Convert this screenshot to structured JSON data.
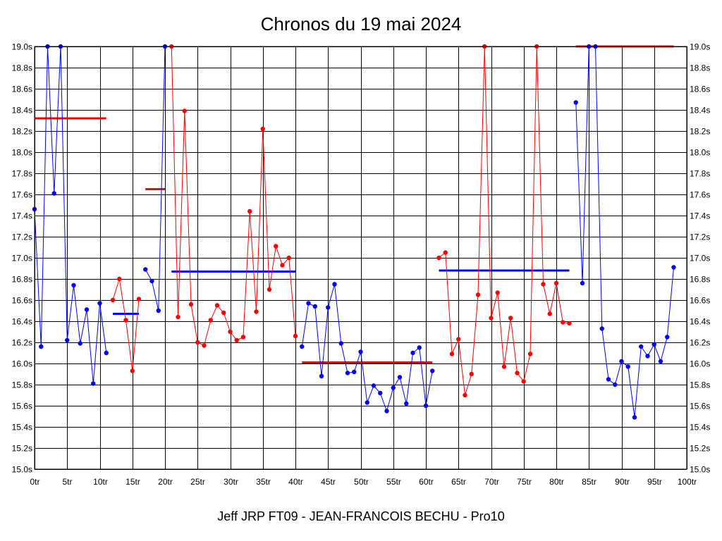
{
  "chart_data": {
    "type": "line",
    "title": "Chronos du 19 mai 2024",
    "footer": "Jeff JRP FT09 - JEAN-FRANCOIS BECHU - Pro10",
    "xlim": [
      0,
      100
    ],
    "ylim": [
      15.0,
      19.0
    ],
    "x_ticks": [
      {
        "value": 0,
        "label": "0tr"
      },
      {
        "value": 5,
        "label": "5tr"
      },
      {
        "value": 10,
        "label": "10tr"
      },
      {
        "value": 15,
        "label": "15tr"
      },
      {
        "value": 20,
        "label": "20tr"
      },
      {
        "value": 25,
        "label": "25tr"
      },
      {
        "value": 30,
        "label": "30tr"
      },
      {
        "value": 35,
        "label": "35tr"
      },
      {
        "value": 40,
        "label": "40tr"
      },
      {
        "value": 45,
        "label": "45tr"
      },
      {
        "value": 50,
        "label": "50tr"
      },
      {
        "value": 55,
        "label": "55tr"
      },
      {
        "value": 60,
        "label": "60tr"
      },
      {
        "value": 65,
        "label": "65tr"
      },
      {
        "value": 70,
        "label": "70tr"
      },
      {
        "value": 75,
        "label": "75tr"
      },
      {
        "value": 80,
        "label": "80tr"
      },
      {
        "value": 85,
        "label": "85tr"
      },
      {
        "value": 90,
        "label": "90tr"
      },
      {
        "value": 95,
        "label": "95tr"
      },
      {
        "value": 100,
        "label": "100tr"
      }
    ],
    "y_ticks": [
      {
        "value": 19.0,
        "label": "19.0s"
      },
      {
        "value": 18.8,
        "label": "18.8s"
      },
      {
        "value": 18.6,
        "label": "18.6s"
      },
      {
        "value": 18.4,
        "label": "18.4s"
      },
      {
        "value": 18.2,
        "label": "18.2s"
      },
      {
        "value": 18.0,
        "label": "18.0s"
      },
      {
        "value": 17.8,
        "label": "17.8s"
      },
      {
        "value": 17.6,
        "label": "17.6s"
      },
      {
        "value": 17.4,
        "label": "17.4s"
      },
      {
        "value": 17.2,
        "label": "17.2s"
      },
      {
        "value": 17.0,
        "label": "17.0s"
      },
      {
        "value": 16.8,
        "label": "16.8s"
      },
      {
        "value": 16.6,
        "label": "16.6s"
      },
      {
        "value": 16.4,
        "label": "16.4s"
      },
      {
        "value": 16.2,
        "label": "16.2s"
      },
      {
        "value": 16.0,
        "label": "16.0s"
      },
      {
        "value": 15.8,
        "label": "15.8s"
      },
      {
        "value": 15.6,
        "label": "15.6s"
      },
      {
        "value": 15.4,
        "label": "15.4s"
      },
      {
        "value": 15.2,
        "label": "15.2s"
      },
      {
        "value": 15.0,
        "label": "15.0s"
      }
    ],
    "grid": true,
    "colors": {
      "blue": "#0000ff",
      "red": "#ff0000"
    },
    "series": [
      {
        "color": "#0000ff",
        "points": [
          [
            0,
            17.46
          ],
          [
            1,
            16.16
          ],
          [
            2,
            19.0
          ],
          [
            3,
            17.61
          ],
          [
            4,
            19.0
          ],
          [
            5,
            16.22
          ],
          [
            6,
            16.74
          ],
          [
            7,
            16.19
          ],
          [
            8,
            16.51
          ],
          [
            9,
            15.81
          ],
          [
            10,
            16.57
          ],
          [
            11,
            16.1
          ]
        ]
      },
      {
        "color": "#ff0000",
        "points": [
          [
            12,
            16.6
          ],
          [
            13,
            16.8
          ],
          [
            14,
            16.41
          ],
          [
            15,
            15.93
          ],
          [
            16,
            16.61
          ]
        ]
      },
      {
        "color": "#0000ff",
        "points": [
          [
            17,
            16.89
          ],
          [
            18,
            16.78
          ],
          [
            19,
            16.5
          ],
          [
            20,
            19.0
          ]
        ]
      },
      {
        "color": "#ff0000",
        "points": [
          [
            21,
            19.0
          ],
          [
            22,
            16.44
          ],
          [
            23,
            18.39
          ],
          [
            24,
            16.56
          ],
          [
            25,
            16.2
          ],
          [
            26,
            16.17
          ],
          [
            27,
            16.41
          ],
          [
            28,
            16.55
          ],
          [
            29,
            16.48
          ],
          [
            30,
            16.3
          ],
          [
            31,
            16.22
          ],
          [
            32,
            16.25
          ],
          [
            33,
            17.44
          ],
          [
            34,
            16.49
          ],
          [
            35,
            18.22
          ],
          [
            36,
            16.7
          ],
          [
            37,
            17.11
          ],
          [
            38,
            16.93
          ],
          [
            39,
            17.0
          ],
          [
            40,
            16.26
          ]
        ]
      },
      {
        "color": "#0000ff",
        "points": [
          [
            41,
            16.16
          ],
          [
            42,
            16.57
          ],
          [
            43,
            16.54
          ],
          [
            44,
            15.88
          ],
          [
            45,
            16.53
          ],
          [
            46,
            16.75
          ],
          [
            47,
            16.19
          ],
          [
            48,
            15.91
          ],
          [
            49,
            15.92
          ],
          [
            50,
            16.11
          ],
          [
            51,
            15.63
          ],
          [
            52,
            15.79
          ],
          [
            53,
            15.72
          ],
          [
            54,
            15.55
          ],
          [
            55,
            15.77
          ],
          [
            56,
            15.87
          ],
          [
            57,
            15.62
          ],
          [
            58,
            16.1
          ],
          [
            59,
            16.15
          ],
          [
            60,
            15.6
          ],
          [
            61,
            15.93
          ]
        ]
      },
      {
        "color": "#ff0000",
        "points": [
          [
            62,
            17.0
          ],
          [
            63,
            17.05
          ],
          [
            64,
            16.09
          ],
          [
            65,
            16.23
          ],
          [
            66,
            15.7
          ],
          [
            67,
            15.9
          ],
          [
            68,
            16.65
          ],
          [
            69,
            19.0
          ],
          [
            70,
            16.43
          ],
          [
            71,
            16.67
          ],
          [
            72,
            15.97
          ],
          [
            73,
            16.43
          ],
          [
            74,
            15.91
          ],
          [
            75,
            15.83
          ],
          [
            76,
            16.09
          ],
          [
            77,
            19.0
          ],
          [
            78,
            16.75
          ],
          [
            79,
            16.47
          ],
          [
            80,
            16.76
          ],
          [
            81,
            16.39
          ],
          [
            82,
            16.38
          ]
        ]
      },
      {
        "color": "#0000ff",
        "points": [
          [
            83,
            18.47
          ],
          [
            84,
            16.76
          ],
          [
            85,
            19.0
          ],
          [
            86,
            19.0
          ],
          [
            87,
            16.33
          ],
          [
            88,
            15.85
          ],
          [
            89,
            15.8
          ],
          [
            90,
            16.02
          ],
          [
            91,
            15.97
          ],
          [
            92,
            15.49
          ],
          [
            93,
            16.16
          ],
          [
            94,
            16.07
          ],
          [
            95,
            16.18
          ],
          [
            96,
            16.02
          ],
          [
            97,
            16.25
          ],
          [
            98,
            16.91
          ]
        ]
      }
    ],
    "average_segments": [
      {
        "color": "#ff0000",
        "x": [
          0,
          11
        ],
        "y": 18.32
      },
      {
        "color": "#0000ff",
        "x": [
          12,
          16
        ],
        "y": 16.47
      },
      {
        "color": "#ff0000",
        "x": [
          17,
          20
        ],
        "y": 17.65
      },
      {
        "color": "#0000ff",
        "x": [
          21,
          40
        ],
        "y": 16.87
      },
      {
        "color": "#ff0000",
        "x": [
          41,
          61
        ],
        "y": 16.01
      },
      {
        "color": "#0000ff",
        "x": [
          62,
          82
        ],
        "y": 16.88
      },
      {
        "color": "#ff0000",
        "x": [
          83,
          98
        ],
        "y": 19.0
      }
    ]
  }
}
